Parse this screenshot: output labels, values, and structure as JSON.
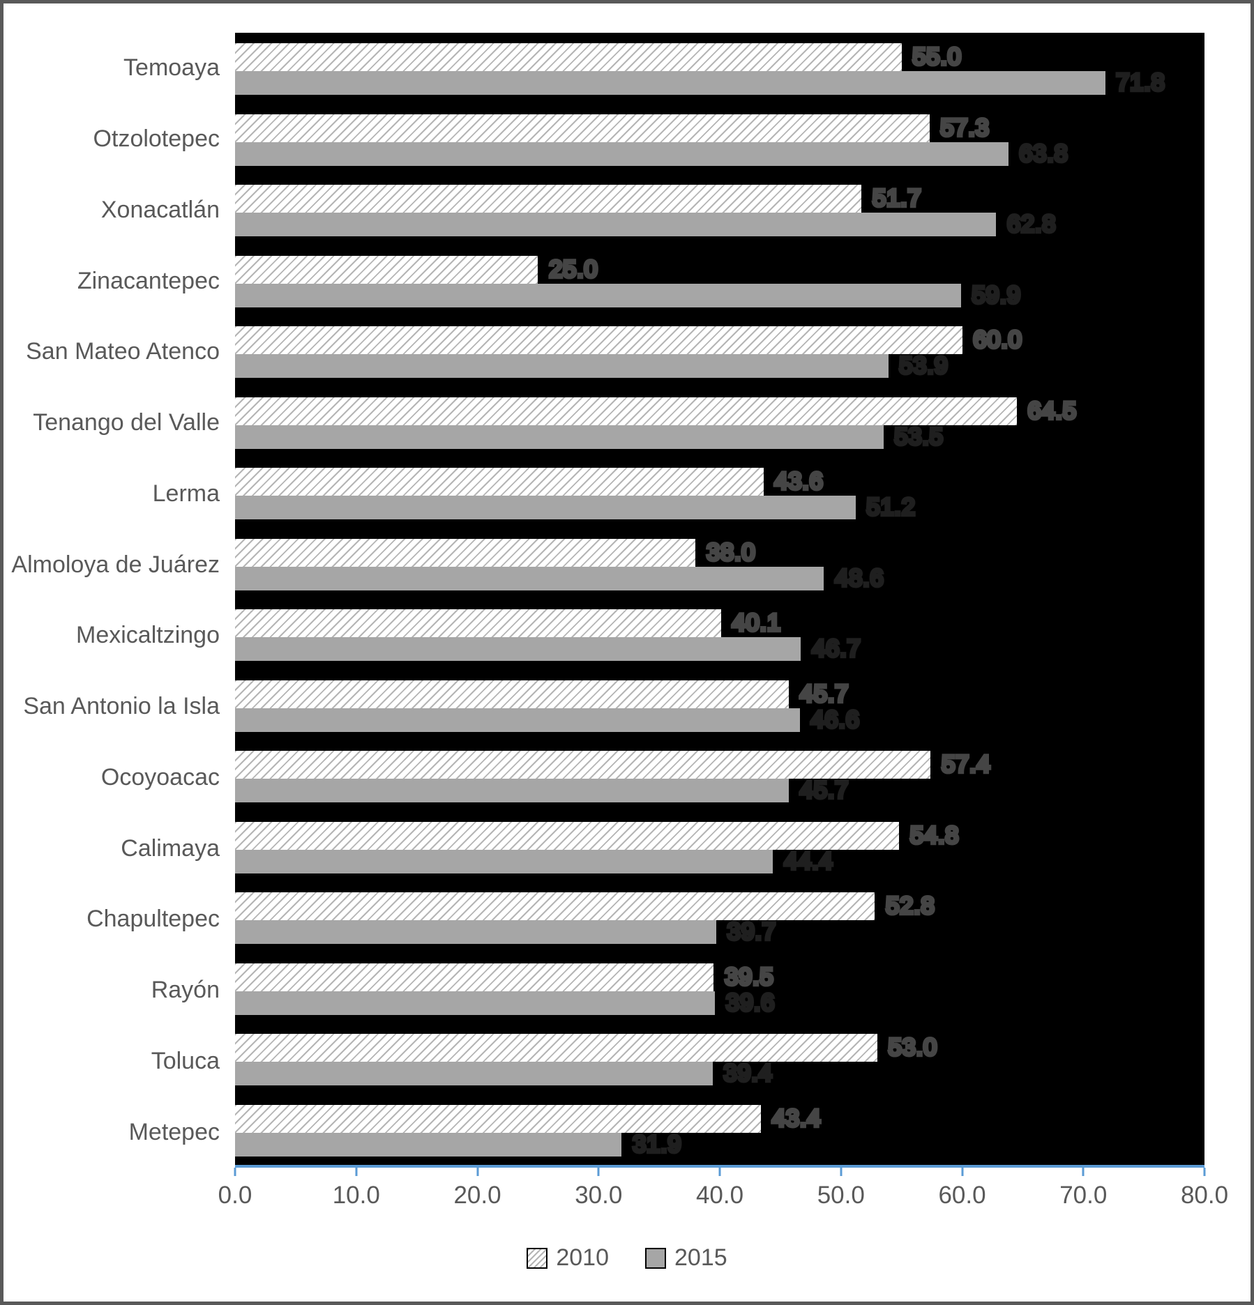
{
  "chart_data": {
    "type": "bar",
    "orientation": "horizontal",
    "title": "",
    "xlabel": "",
    "ylabel": "",
    "categories": [
      "Temoaya",
      "Otzolotepec",
      "Xonacatlán",
      "Zinacantepec",
      "San Mateo Atenco",
      "Tenango del Valle",
      "Lerma",
      "Almoloya de Juárez",
      "Mexicaltzingo",
      "San Antonio la Isla",
      "Ocoyoacac",
      "Calimaya",
      "Chapultepec",
      "Rayón",
      "Toluca",
      "Metepec"
    ],
    "series": [
      {
        "name": "2010",
        "style": "hatched-white",
        "values": [
          55.0,
          57.3,
          51.7,
          25.0,
          60.0,
          64.5,
          43.6,
          38.0,
          40.1,
          45.7,
          57.4,
          54.8,
          52.8,
          39.5,
          53.0,
          43.4
        ]
      },
      {
        "name": "2015",
        "style": "solid-gray",
        "values": [
          71.8,
          63.8,
          62.8,
          59.9,
          53.9,
          53.5,
          51.2,
          48.6,
          46.7,
          46.6,
          45.7,
          44.4,
          39.7,
          39.6,
          39.4,
          31.9
        ]
      }
    ],
    "xlim": [
      0,
      80
    ],
    "x_ticks": [
      "0.0",
      "10.0",
      "20.0",
      "30.0",
      "40.0",
      "50.0",
      "60.0",
      "70.0",
      "80.0"
    ],
    "grid": false,
    "plot_background": "#000000",
    "legend_position": "bottom",
    "colors": {
      "bar_2015": "#a6a6a6",
      "axis_line": "#5B9BD5",
      "text": "#595959",
      "hatch_line": "#b5b5b5"
    },
    "value_label_format": "one-decimal"
  }
}
